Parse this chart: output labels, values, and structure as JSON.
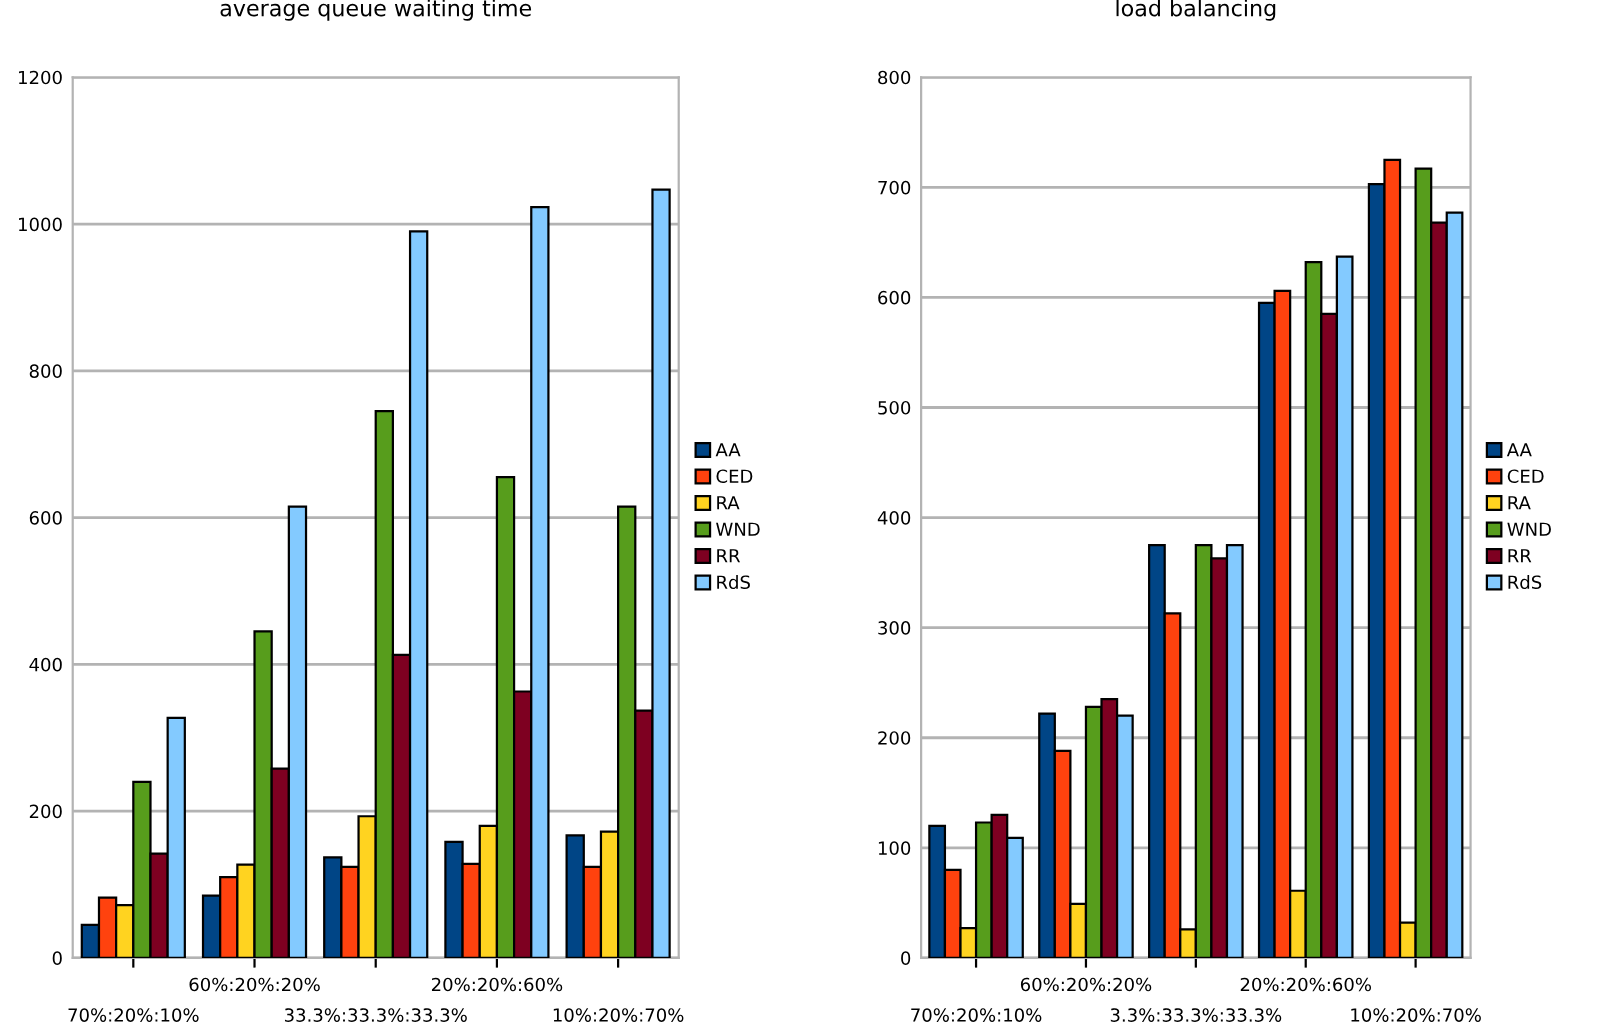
{
  "chart_data": [
    {
      "type": "bar",
      "title": "average queue waiting time",
      "categories": [
        "70%:20%:10%",
        "60%:20%:20%",
        "33.3%:33.3%:33.3%",
        "20%:20%:60%",
        "10%:20%:70%"
      ],
      "series": [
        {
          "name": "AA",
          "color": "#004586",
          "values": [
            45,
            85,
            137,
            158,
            167
          ]
        },
        {
          "name": "CED",
          "color": "#ff420e",
          "values": [
            82,
            110,
            124,
            128,
            124
          ]
        },
        {
          "name": "RA",
          "color": "#ffd320",
          "values": [
            72,
            127,
            193,
            180,
            172
          ]
        },
        {
          "name": "WND",
          "color": "#579d1c",
          "values": [
            240,
            445,
            745,
            655,
            615
          ]
        },
        {
          "name": "RR",
          "color": "#7e0021",
          "values": [
            142,
            258,
            413,
            363,
            337
          ]
        },
        {
          "name": "RdS",
          "color": "#83caff",
          "values": [
            327,
            615,
            990,
            1023,
            1047
          ]
        }
      ],
      "ylim": [
        0,
        1200
      ],
      "yticks": [
        0,
        200,
        400,
        600,
        800,
        1000,
        1200
      ],
      "grid": "y",
      "legend": "right"
    },
    {
      "type": "bar",
      "title": "load balancing",
      "categories": [
        "70%:20%:10%",
        "60%:20%:20%",
        "3.3%:33.3%:33.3%",
        "20%:20%:60%",
        "10%:20%:70%"
      ],
      "series": [
        {
          "name": "AA",
          "color": "#004586",
          "values": [
            120,
            222,
            375,
            595,
            703
          ]
        },
        {
          "name": "CED",
          "color": "#ff420e",
          "values": [
            80,
            188,
            313,
            606,
            725
          ]
        },
        {
          "name": "RA",
          "color": "#ffd320",
          "values": [
            27,
            49,
            26,
            61,
            32
          ]
        },
        {
          "name": "WND",
          "color": "#579d1c",
          "values": [
            123,
            228,
            375,
            632,
            717
          ]
        },
        {
          "name": "RR",
          "color": "#7e0021",
          "values": [
            130,
            235,
            363,
            585,
            668
          ]
        },
        {
          "name": "RdS",
          "color": "#83caff",
          "values": [
            109,
            220,
            375,
            637,
            677
          ]
        }
      ],
      "ylim": [
        0,
        800
      ],
      "yticks": [
        0,
        100,
        200,
        300,
        400,
        500,
        600,
        700,
        800
      ],
      "grid": "y",
      "legend": "right"
    }
  ]
}
